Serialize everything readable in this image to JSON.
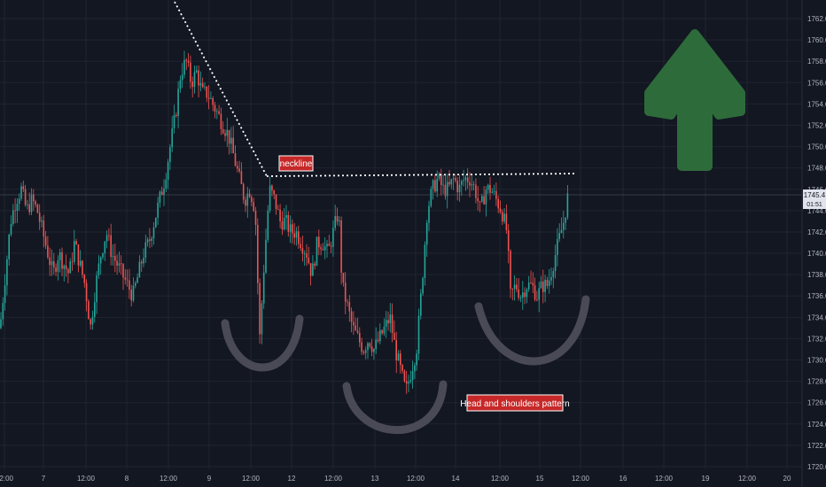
{
  "chart_data": {
    "type": "candlestick",
    "ylim": [
      1720,
      1763
    ],
    "y_ticks": [
      1762.0,
      1760.0,
      1758.0,
      1756.0,
      1754.0,
      1752.0,
      1750.0,
      1748.0,
      1746.0,
      1744.0,
      1742.0,
      1740.0,
      1738.0,
      1736.0,
      1734.0,
      1732.0,
      1730.0,
      1728.0,
      1726.0,
      1724.0,
      1722.0,
      1720.0
    ],
    "x_ticks": [
      "12:00",
      "7",
      "12:00",
      "8",
      "12:00",
      "9",
      "12:00",
      "12",
      "12:00",
      "13",
      "12:00",
      "14",
      "12:00",
      "15",
      "12:00",
      "16",
      "12:00",
      "19",
      "12:00",
      "20"
    ],
    "path": [
      [
        0,
        1733
      ],
      [
        6,
        1738
      ],
      [
        12,
        1743
      ],
      [
        18,
        1745
      ],
      [
        24,
        1746
      ],
      [
        30,
        1744
      ],
      [
        36,
        1745
      ],
      [
        42,
        1744
      ],
      [
        48,
        1742
      ],
      [
        54,
        1740
      ],
      [
        60,
        1738
      ],
      [
        66,
        1740
      ],
      [
        72,
        1739
      ],
      [
        78,
        1738
      ],
      [
        84,
        1741
      ],
      [
        90,
        1739
      ],
      [
        96,
        1737
      ],
      [
        102,
        1733
      ],
      [
        108,
        1737
      ],
      [
        114,
        1740
      ],
      [
        120,
        1742
      ],
      [
        126,
        1740
      ],
      [
        132,
        1739
      ],
      [
        138,
        1738
      ],
      [
        144,
        1737
      ],
      [
        150,
        1736
      ],
      [
        156,
        1738
      ],
      [
        162,
        1740
      ],
      [
        168,
        1741
      ],
      [
        174,
        1743
      ],
      [
        180,
        1745
      ],
      [
        186,
        1747
      ],
      [
        192,
        1750
      ],
      [
        198,
        1753
      ],
      [
        204,
        1757
      ],
      [
        210,
        1758
      ],
      [
        216,
        1756
      ],
      [
        222,
        1757
      ],
      [
        228,
        1755
      ],
      [
        234,
        1755
      ],
      [
        240,
        1754
      ],
      [
        246,
        1753
      ],
      [
        252,
        1752
      ],
      [
        258,
        1751
      ],
      [
        264,
        1749
      ],
      [
        270,
        1747
      ],
      [
        276,
        1745
      ],
      [
        282,
        1746
      ],
      [
        288,
        1744
      ],
      [
        293,
        1732
      ],
      [
        298,
        1739
      ],
      [
        304,
        1746
      ],
      [
        310,
        1745
      ],
      [
        316,
        1743
      ],
      [
        322,
        1743
      ],
      [
        328,
        1742
      ],
      [
        334,
        1742
      ],
      [
        340,
        1741
      ],
      [
        346,
        1740
      ],
      [
        352,
        1738
      ],
      [
        358,
        1741
      ],
      [
        364,
        1741
      ],
      [
        370,
        1740
      ],
      [
        376,
        1742
      ],
      [
        382,
        1744
      ],
      [
        386,
        1737
      ],
      [
        392,
        1735
      ],
      [
        398,
        1733
      ],
      [
        404,
        1732
      ],
      [
        410,
        1731
      ],
      [
        416,
        1732
      ],
      [
        422,
        1731
      ],
      [
        428,
        1732
      ],
      [
        434,
        1733
      ],
      [
        440,
        1734
      ],
      [
        446,
        1731
      ],
      [
        452,
        1729
      ],
      [
        458,
        1727
      ],
      [
        464,
        1729
      ],
      [
        470,
        1731
      ],
      [
        476,
        1737
      ],
      [
        482,
        1744
      ],
      [
        488,
        1746
      ],
      [
        494,
        1747
      ],
      [
        500,
        1746
      ],
      [
        506,
        1746
      ],
      [
        512,
        1747
      ],
      [
        518,
        1746
      ],
      [
        524,
        1747
      ],
      [
        530,
        1747
      ],
      [
        536,
        1746
      ],
      [
        542,
        1744
      ],
      [
        548,
        1746
      ],
      [
        554,
        1746
      ],
      [
        560,
        1745
      ],
      [
        566,
        1744
      ],
      [
        572,
        1742
      ],
      [
        576,
        1736
      ],
      [
        582,
        1737
      ],
      [
        588,
        1736
      ],
      [
        594,
        1737
      ],
      [
        600,
        1737
      ],
      [
        606,
        1736
      ],
      [
        612,
        1737
      ],
      [
        618,
        1737
      ],
      [
        624,
        1739
      ],
      [
        630,
        1741
      ],
      [
        636,
        1743
      ],
      [
        642,
        1746
      ]
    ],
    "current_price": "1745.4",
    "current_time": "01:51",
    "annotations": {
      "neckline_label": "neckline",
      "pattern_label": "Head and shoulders pattern"
    },
    "colors": {
      "background": "#131722",
      "up": "#26a69a",
      "down": "#ef5350",
      "arrow": "#2e6b3a",
      "curve": "#4a4a56",
      "label_bg": "#c62828",
      "label_border": "#ffffff"
    },
    "grid": true
  }
}
